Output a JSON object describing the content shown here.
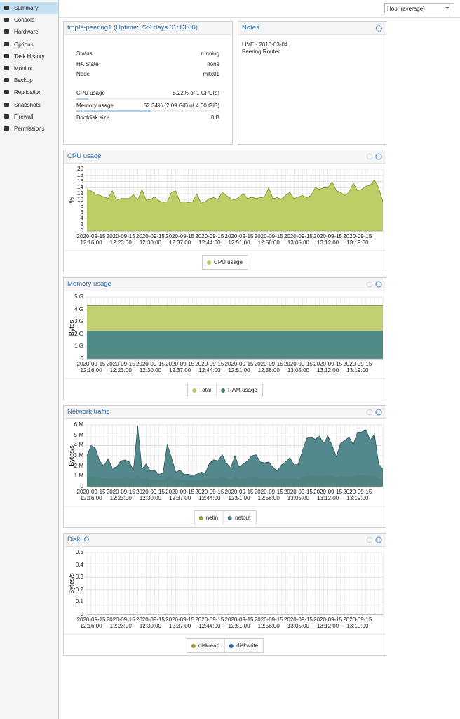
{
  "sidebar": [
    "Summary",
    "Console",
    "Hardware",
    "Options",
    "Task History",
    "Monitor",
    "Backup",
    "Replication",
    "Snapshots",
    "Firewall",
    "Permissions"
  ],
  "toolbar": {
    "timeframe": "Hour (average)"
  },
  "status": {
    "title": "tmpfs-peering1 (Uptime: 729 days 01:13:06)",
    "rows": [
      {
        "label": "Status",
        "value": "running"
      },
      {
        "label": "HA State",
        "value": "none"
      },
      {
        "label": "Node",
        "value": "mitx01"
      },
      {
        "label": "CPU usage",
        "value": "8.22% of 1 CPU(s)",
        "percent": 8.22
      },
      {
        "label": "Memory usage",
        "value": "52.34% (2.09 GiB of 4.00 GiB)",
        "percent": 52.34
      },
      {
        "label": "Bootdisk size",
        "value": "0 B"
      }
    ]
  },
  "notes": {
    "title": "Notes",
    "lines": [
      "LIVE - 2016-03-04",
      "Peering Router"
    ]
  },
  "chart_data": [
    {
      "type": "area",
      "title": "CPU usage",
      "ylabel": "%",
      "categories": [
        null,
        "2020-09-15 12:16:00",
        null,
        null,
        null,
        null,
        null,
        null,
        "2020-09-15 12:23:00",
        null,
        null,
        null,
        null,
        null,
        null,
        "2020-09-15 12:30:00",
        null,
        null,
        null,
        null,
        null,
        null,
        "2020-09-15 12:37:00",
        null,
        null,
        null,
        null,
        null,
        null,
        "2020-09-15 12:44:00",
        null,
        null,
        null,
        null,
        null,
        null,
        "2020-09-15 12:51:00",
        null,
        null,
        null,
        null,
        null,
        null,
        "2020-09-15 12:58:00",
        null,
        null,
        null,
        null,
        null,
        null,
        "2020-09-15 13:05:00",
        null,
        null,
        null,
        null,
        null,
        null,
        "2020-09-15 13:12:00",
        null,
        null,
        null,
        null,
        null,
        null,
        "2020-09-15 13:19:00",
        null,
        null,
        null,
        null,
        null,
        null
      ],
      "series": [
        {
          "name": "CPU usage",
          "color": "#b8cc5e",
          "line": "#7f8f2e",
          "values": [
            13.5,
            13,
            12,
            11.5,
            11,
            10.5,
            13,
            10,
            10.5,
            10.5,
            10.5,
            11.8,
            10,
            13.5,
            10,
            10.2,
            11,
            9.8,
            9.3,
            9.5,
            12.5,
            13,
            9.3,
            9.5,
            9.2,
            9.5,
            12,
            9,
            9.5,
            10.5,
            10.8,
            10.2,
            12.5,
            11.5,
            10.5,
            10,
            11,
            12,
            10.5,
            11,
            10.5,
            10.8,
            11,
            14,
            10.5,
            10.8,
            10.3,
            11.5,
            12.5,
            10.5,
            11,
            11.5,
            10.8,
            11.5,
            14,
            13.5,
            14,
            14,
            16,
            13,
            12.5,
            11.5,
            12.5,
            15.5,
            13,
            13.5,
            14.5,
            14.8,
            16.5,
            14,
            9.5
          ]
        }
      ],
      "ylim": [
        0,
        20
      ],
      "yticks": [
        0,
        2,
        4,
        6,
        8,
        10,
        12,
        14,
        16,
        18,
        20
      ],
      "grid": true
    },
    {
      "type": "area",
      "title": "Memory usage",
      "ylabel": "Bytes",
      "categories": [
        null,
        "2020-09-15 12:16:00",
        null,
        null,
        null,
        null,
        null,
        null,
        "2020-09-15 12:23:00",
        null,
        null,
        null,
        null,
        null,
        null,
        "2020-09-15 12:30:00",
        null,
        null,
        null,
        null,
        null,
        null,
        "2020-09-15 12:37:00",
        null,
        null,
        null,
        null,
        null,
        null,
        "2020-09-15 12:44:00",
        null,
        null,
        null,
        null,
        null,
        null,
        "2020-09-15 12:51:00",
        null,
        null,
        null,
        null,
        null,
        null,
        "2020-09-15 12:58:00",
        null,
        null,
        null,
        null,
        null,
        null,
        "2020-09-15 13:05:00",
        null,
        null,
        null,
        null,
        null,
        null,
        "2020-09-15 13:12:00",
        null,
        null,
        null,
        null,
        null,
        null,
        "2020-09-15 13:19:00",
        null,
        null,
        null,
        null,
        null,
        null
      ],
      "series": [
        {
          "name": "Total",
          "color": "#bfd06a",
          "line": "#7f8f2e",
          "values": [
            4294967296,
            4294967296,
            4294967296,
            4294967296,
            4294967296,
            4294967296,
            4294967296,
            4294967296,
            4294967296,
            4294967296,
            4294967296,
            4294967296,
            4294967296,
            4294967296,
            4294967296,
            4294967296,
            4294967296,
            4294967296,
            4294967296,
            4294967296,
            4294967296,
            4294967296,
            4294967296,
            4294967296,
            4294967296,
            4294967296,
            4294967296,
            4294967296,
            4294967296,
            4294967296,
            4294967296,
            4294967296,
            4294967296,
            4294967296,
            4294967296,
            4294967296,
            4294967296,
            4294967296,
            4294967296,
            4294967296,
            4294967296,
            4294967296,
            4294967296,
            4294967296,
            4294967296,
            4294967296,
            4294967296,
            4294967296,
            4294967296,
            4294967296,
            4294967296,
            4294967296,
            4294967296,
            4294967296,
            4294967296,
            4294967296,
            4294967296,
            4294967296,
            4294967296,
            4294967296,
            4294967296,
            4294967296,
            4294967296,
            4294967296,
            4294967296,
            4294967296,
            4294967296,
            4294967296,
            4294967296,
            4294967296,
            4294967296
          ]
        },
        {
          "name": "RAM usage",
          "color": "#4a8688",
          "line": "#2f5f62",
          "values": [
            2244120412,
            2244120412,
            2244120412,
            2244120412,
            2244120412,
            2244120412,
            2244120412,
            2244120412,
            2244120412,
            2244120412,
            2244120412,
            2244120412,
            2244120412,
            2244120412,
            2244120412,
            2244120412,
            2244120412,
            2244120412,
            2244120412,
            2244120412,
            2244120412,
            2244120412,
            2244120412,
            2244120412,
            2244120412,
            2244120412,
            2244120412,
            2244120412,
            2244120412,
            2244120412,
            2244120412,
            2244120412,
            2244120412,
            2244120412,
            2244120412,
            2244120412,
            2244120412,
            2244120412,
            2244120412,
            2244120412,
            2244120412,
            2244120412,
            2244120412,
            2244120412,
            2244120412,
            2244120412,
            2244120412,
            2244120412,
            2244120412,
            2244120412,
            2244120412,
            2244120412,
            2244120412,
            2244120412,
            2244120412,
            2244120412,
            2244120412,
            2244120412,
            2244120412,
            2244120412,
            2244120412,
            2244120412,
            2244120412,
            2244120412,
            2244120412,
            2244120412,
            2244120412,
            2244120412,
            2244120412,
            2244120412,
            2244120412
          ]
        }
      ],
      "ylim": [
        0,
        5000000000
      ],
      "yticks": [
        0,
        {
          "value": 1000000000,
          "label": "1 G"
        },
        {
          "value": 2000000000,
          "label": "2 G"
        },
        {
          "value": 3000000000,
          "label": "3 G"
        },
        {
          "value": 4000000000,
          "label": "4 G"
        },
        {
          "value": 5000000000,
          "label": "5 G"
        }
      ],
      "grid": true
    },
    {
      "type": "area",
      "title": "Network traffic",
      "ylabel": "Bytes/s",
      "categories": [
        null,
        "2020-09-15 12:16:00",
        null,
        null,
        null,
        null,
        null,
        null,
        "2020-09-15 12:23:00",
        null,
        null,
        null,
        null,
        null,
        null,
        "2020-09-15 12:30:00",
        null,
        null,
        null,
        null,
        null,
        null,
        "2020-09-15 12:37:00",
        null,
        null,
        null,
        null,
        null,
        null,
        "2020-09-15 12:44:00",
        null,
        null,
        null,
        null,
        null,
        null,
        "2020-09-15 12:51:00",
        null,
        null,
        null,
        null,
        null,
        null,
        "2020-09-15 12:58:00",
        null,
        null,
        null,
        null,
        null,
        null,
        "2020-09-15 13:05:00",
        null,
        null,
        null,
        null,
        null,
        null,
        "2020-09-15 13:12:00",
        null,
        null,
        null,
        null,
        null,
        null,
        "2020-09-15 13:19:00",
        null,
        null,
        null,
        null,
        null,
        null
      ],
      "series": [
        {
          "name": "netin",
          "color": "#9a9a3a",
          "line": "#7f8f2e",
          "values": [
            900000,
            950000,
            880000,
            820000,
            760000,
            800000,
            700000,
            720000,
            800000,
            850000,
            790000,
            650000,
            1000000,
            700000,
            780000,
            640000,
            660000,
            600000,
            620000,
            950000,
            850000,
            610000,
            640000,
            590000,
            600000,
            560000,
            590000,
            620000,
            610000,
            780000,
            820000,
            800000,
            900000,
            760000,
            690000,
            880000,
            700000,
            740000,
            790000,
            860000,
            880000,
            770000,
            750000,
            770000,
            690000,
            630000,
            720000,
            770000,
            830000,
            720000,
            740000,
            900000,
            1000000,
            1050000,
            980000,
            1060000,
            950000,
            1060000,
            940000,
            820000,
            950000,
            990000,
            1020000,
            940000,
            1080000,
            1080000,
            1090000,
            970000,
            1050000,
            760000,
            680000
          ]
        },
        {
          "name": "netout",
          "color": "#4a8286",
          "line": "#2f5659",
          "values": [
            3000000,
            4000000,
            3700000,
            2500000,
            2000000,
            2700000,
            1800000,
            1900000,
            2500000,
            2600000,
            2400000,
            1600000,
            5900000,
            1700000,
            2200000,
            1500000,
            1600000,
            1200000,
            1300000,
            4100000,
            2800000,
            1400000,
            1600000,
            1200000,
            1200000,
            1100000,
            1200000,
            1400000,
            1300000,
            2300000,
            2600000,
            2500000,
            3100000,
            2300000,
            1800000,
            3000000,
            1900000,
            2200000,
            2500000,
            3000000,
            3100000,
            2400000,
            2300000,
            2400000,
            1900000,
            1500000,
            2100000,
            2400000,
            2800000,
            2100000,
            2200000,
            3500000,
            4700000,
            4800000,
            4600000,
            4900000,
            4200000,
            4900000,
            4000000,
            2900000,
            4200000,
            4500000,
            4800000,
            4100000,
            5300000,
            5300000,
            5500000,
            4500000,
            5100000,
            2200000,
            1700000
          ]
        }
      ],
      "ylim": [
        0,
        6000000
      ],
      "yticks": [
        0,
        {
          "value": 1000000,
          "label": "1 M"
        },
        {
          "value": 2000000,
          "label": "2 M"
        },
        {
          "value": 3000000,
          "label": "3 M"
        },
        {
          "value": 4000000,
          "label": "4 M"
        },
        {
          "value": 5000000,
          "label": "5 M"
        },
        {
          "value": 6000000,
          "label": "6 M"
        }
      ],
      "grid": true
    },
    {
      "type": "area",
      "title": "Disk IO",
      "ylabel": "Bytes/s",
      "categories": [
        null,
        "2020-09-15 12:16:00",
        null,
        null,
        null,
        null,
        null,
        null,
        "2020-09-15 12:23:00",
        null,
        null,
        null,
        null,
        null,
        null,
        "2020-09-15 12:30:00",
        null,
        null,
        null,
        null,
        null,
        null,
        "2020-09-15 12:37:00",
        null,
        null,
        null,
        null,
        null,
        null,
        "2020-09-15 12:44:00",
        null,
        null,
        null,
        null,
        null,
        null,
        "2020-09-15 12:51:00",
        null,
        null,
        null,
        null,
        null,
        null,
        "2020-09-15 12:58:00",
        null,
        null,
        null,
        null,
        null,
        null,
        "2020-09-15 13:05:00",
        null,
        null,
        null,
        null,
        null,
        null,
        "2020-09-15 13:12:00",
        null,
        null,
        null,
        null,
        null,
        null,
        "2020-09-15 13:19:00",
        null,
        null,
        null,
        null,
        null,
        null
      ],
      "series": [
        {
          "name": "diskread",
          "color": "#9a9a3a",
          "line": "#7f8f2e",
          "values": [
            0,
            0,
            0,
            0,
            0,
            0,
            0,
            0,
            0,
            0,
            0,
            0,
            0,
            0,
            0,
            0,
            0,
            0,
            0,
            0,
            0,
            0,
            0,
            0,
            0,
            0,
            0,
            0,
            0,
            0,
            0,
            0,
            0,
            0,
            0,
            0,
            0,
            0,
            0,
            0,
            0,
            0,
            0,
            0,
            0,
            0,
            0,
            0,
            0,
            0,
            0,
            0,
            0,
            0,
            0,
            0,
            0,
            0,
            0,
            0,
            0,
            0,
            0,
            0,
            0,
            0,
            0,
            0,
            0,
            0,
            0
          ]
        },
        {
          "name": "diskwrite",
          "color": "#2a5ea8",
          "line": "#2a5ea8",
          "values": [
            0,
            0,
            0,
            0,
            0,
            0,
            0,
            0,
            0,
            0,
            0,
            0,
            0,
            0,
            0,
            0,
            0,
            0,
            0,
            0,
            0,
            0,
            0,
            0,
            0,
            0,
            0,
            0,
            0,
            0,
            0,
            0,
            0,
            0,
            0,
            0,
            0,
            0,
            0,
            0,
            0,
            0,
            0,
            0,
            0,
            0,
            0,
            0,
            0,
            0,
            0,
            0,
            0,
            0,
            0,
            0,
            0,
            0,
            0,
            0,
            0,
            0,
            0,
            0,
            0,
            0,
            0,
            0,
            0,
            0,
            0
          ]
        }
      ],
      "ylim": [
        0,
        0.5
      ],
      "yticks": [
        0,
        0.1,
        0.2,
        0.3,
        0.4,
        0.5
      ],
      "grid": true
    }
  ]
}
